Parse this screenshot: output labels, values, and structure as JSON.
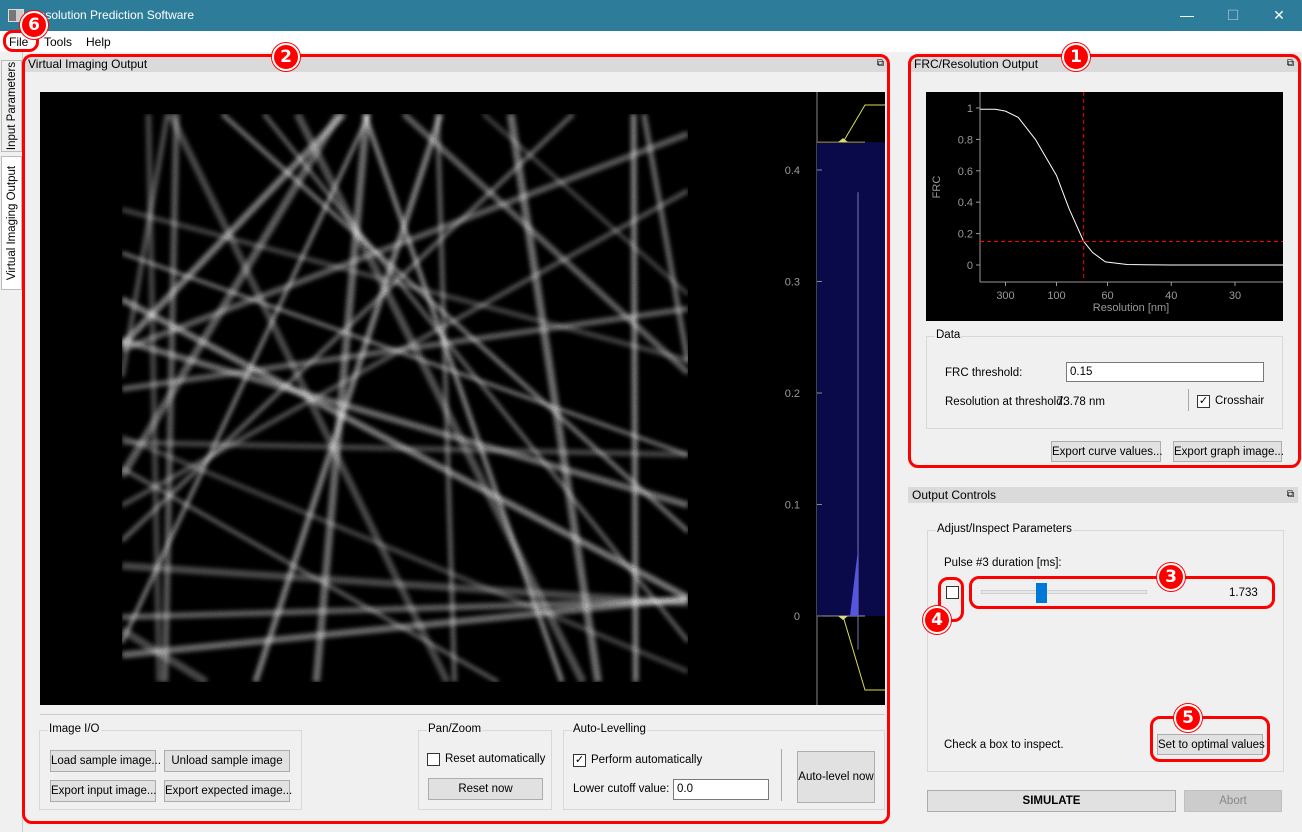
{
  "window": {
    "title": "Resolution Prediction Software",
    "controls": [
      "minimize-icon",
      "maximize-icon",
      "close-icon"
    ]
  },
  "menu": [
    "File",
    "Tools",
    "Help"
  ],
  "side_tabs": [
    "Input Parameters",
    "Virtual Imaging Output"
  ],
  "imaging": {
    "title": "Virtual Imaging Output",
    "histogram": {
      "ticks": [
        "0",
        "0.1",
        "0.2",
        "0.3",
        "0.4"
      ],
      "tick_values": [
        0,
        0.1,
        0.2,
        0.3,
        0.4
      ],
      "levels": [
        0,
        0.425
      ],
      "range": [
        -0.05,
        0.47
      ],
      "fill_color": "#0a0a4a",
      "gradient": "black-to-white"
    },
    "image_io": {
      "title": "Image I/O",
      "load": "Load sample image...",
      "unload": "Unload sample image",
      "export_input": "Export input image...",
      "export_expected": "Export expected image..."
    },
    "pan_zoom": {
      "title": "Pan/Zoom",
      "reset_auto": "Reset automatically",
      "reset_auto_checked": false,
      "reset_now": "Reset now"
    },
    "auto_level": {
      "title": "Auto-Levelling",
      "perform_auto": "Perform automatically",
      "perform_auto_checked": true,
      "cutoff_label": "Lower cutoff value:",
      "cutoff_value": "0.0",
      "auto_level_now": "Auto-level now"
    }
  },
  "frc": {
    "title": "FRC/Resolution Output",
    "data_group": "Data",
    "threshold_label": "FRC threshold:",
    "threshold_value": "0.15",
    "resolution_label": "Resolution at threshold:",
    "resolution_value": "73.78 nm",
    "crosshair_label": "Crosshair",
    "crosshair_checked": true,
    "export_curve": "Export curve values...",
    "export_graph": "Export graph image..."
  },
  "chart_data": {
    "type": "line",
    "xlabel": "Resolution [nm]",
    "ylabel": "FRC",
    "x_scale": "reciprocal",
    "x_ticks": [
      300,
      100,
      60,
      40,
      30
    ],
    "y_ticks": [
      0,
      0.2,
      0.4,
      0.6,
      0.8,
      1
    ],
    "ylim": [
      -0.1,
      1.1
    ],
    "xlim": [
      "inf",
      25
    ],
    "grid": false,
    "series": [
      {
        "color": "#ffffff",
        "points": [
          [
            500,
            0.992
          ],
          [
            300,
            0.98
          ],
          [
            200,
            0.94
          ],
          [
            138,
            0.8
          ],
          [
            100,
            0.57
          ],
          [
            86,
            0.36
          ],
          [
            73.78,
            0.15
          ],
          [
            68,
            0.08
          ],
          [
            61,
            0.02
          ],
          [
            52,
            0.003
          ],
          [
            40,
            0
          ],
          [
            25,
            0
          ]
        ]
      }
    ],
    "crosshair": {
      "x": 73.78,
      "y": 0.15,
      "color": "#ff0000"
    }
  },
  "output_controls": {
    "title": "Output Controls",
    "group": "Adjust/Inspect Parameters",
    "param_label": "Pulse #3 duration [ms]:",
    "param_checked": false,
    "slider_value": "1.733",
    "slider_fraction": 0.35,
    "hint": "Check a box to inspect.",
    "optimal": "Set to optimal values",
    "simulate": "SIMULATE",
    "abort": "Abort"
  },
  "annotations": [
    "1",
    "2",
    "3",
    "4",
    "5",
    "6"
  ]
}
